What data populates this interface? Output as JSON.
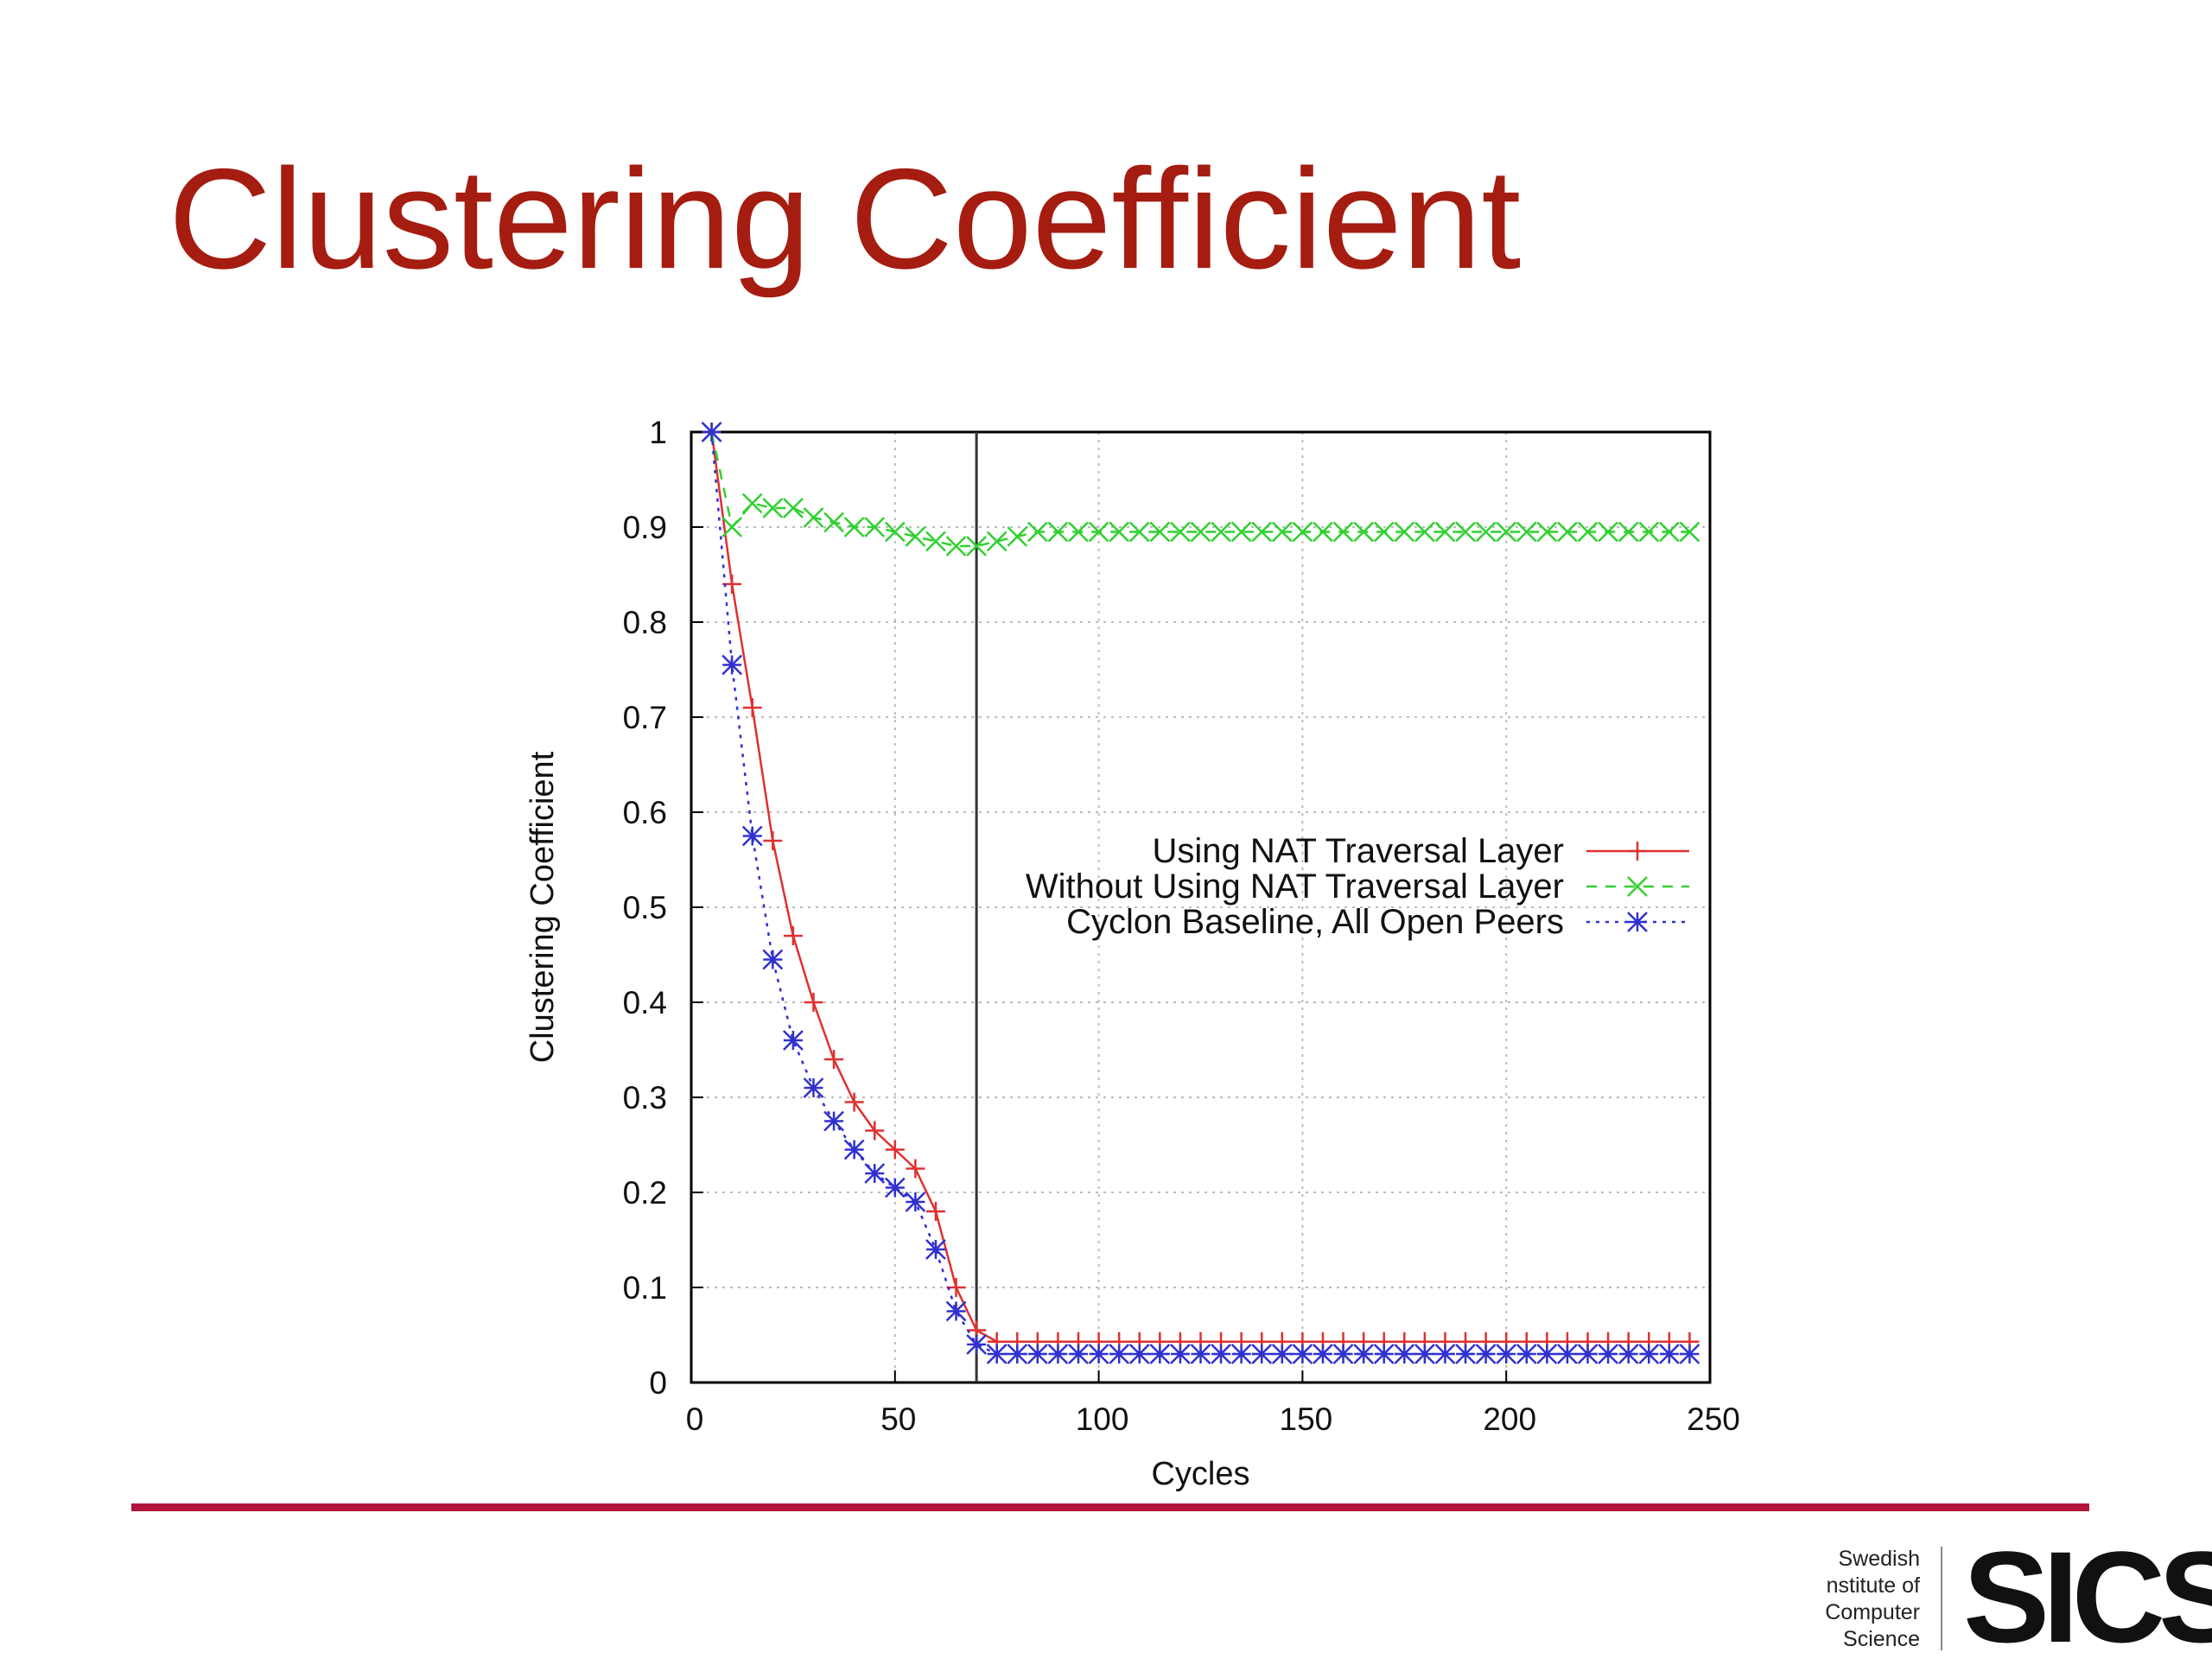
{
  "chart_data": {
    "type": "line",
    "title": "Clustering Coefficient",
    "x_label": "Cycles",
    "y_label": "Clustering Coefficient",
    "x": [
      5,
      10,
      15,
      20,
      25,
      30,
      35,
      40,
      45,
      50,
      55,
      60,
      65,
      70,
      75,
      80,
      85,
      90,
      95,
      100,
      105,
      110,
      115,
      120,
      125,
      130,
      135,
      140,
      145,
      150,
      155,
      160,
      165,
      170,
      175,
      180,
      185,
      190,
      195,
      200,
      205,
      210,
      215,
      220,
      225,
      230,
      235,
      240,
      245
    ],
    "series": [
      {
        "name": "Using NAT Traversal Layer",
        "color": "#e03030",
        "marker": "plus",
        "dash": "solid",
        "values": [
          1.0,
          0.84,
          0.71,
          0.57,
          0.47,
          0.4,
          0.34,
          0.295,
          0.265,
          0.245,
          0.225,
          0.18,
          0.1,
          0.055,
          0.043,
          0.043,
          0.043,
          0.043,
          0.043,
          0.043,
          0.043,
          0.043,
          0.043,
          0.043,
          0.043,
          0.043,
          0.043,
          0.043,
          0.043,
          0.043,
          0.043,
          0.043,
          0.043,
          0.043,
          0.043,
          0.043,
          0.043,
          0.043,
          0.043,
          0.043,
          0.043,
          0.043,
          0.043,
          0.043,
          0.043,
          0.043,
          0.043,
          0.043,
          0.043
        ]
      },
      {
        "name": "Without Using NAT Traversal Layer",
        "color": "#30d030",
        "marker": "cross",
        "dash": "dashed",
        "values": [
          1.0,
          0.9,
          0.925,
          0.92,
          0.92,
          0.91,
          0.905,
          0.9,
          0.9,
          0.895,
          0.89,
          0.885,
          0.88,
          0.88,
          0.885,
          0.89,
          0.895,
          0.895,
          0.895,
          0.895,
          0.895,
          0.895,
          0.895,
          0.895,
          0.895,
          0.895,
          0.895,
          0.895,
          0.895,
          0.895,
          0.895,
          0.895,
          0.895,
          0.895,
          0.895,
          0.895,
          0.895,
          0.895,
          0.895,
          0.895,
          0.895,
          0.895,
          0.895,
          0.895,
          0.895,
          0.895,
          0.895,
          0.895,
          0.895
        ]
      },
      {
        "name": "Cyclon Baseline, All Open Peers",
        "color": "#3030d0",
        "marker": "star",
        "dash": "dotted",
        "values": [
          1.0,
          0.755,
          0.575,
          0.445,
          0.36,
          0.31,
          0.275,
          0.245,
          0.22,
          0.205,
          0.19,
          0.14,
          0.075,
          0.04,
          0.03,
          0.03,
          0.03,
          0.03,
          0.03,
          0.03,
          0.03,
          0.03,
          0.03,
          0.03,
          0.03,
          0.03,
          0.03,
          0.03,
          0.03,
          0.03,
          0.03,
          0.03,
          0.03,
          0.03,
          0.03,
          0.03,
          0.03,
          0.03,
          0.03,
          0.03,
          0.03,
          0.03,
          0.03,
          0.03,
          0.03,
          0.03,
          0.03,
          0.03,
          0.03
        ]
      }
    ],
    "vline": 70,
    "xlim": [
      0,
      250
    ],
    "xticks": [
      0,
      50,
      100,
      150,
      200,
      250
    ],
    "ylim": [
      0,
      1
    ],
    "yticks": [
      0,
      0.1,
      0.2,
      0.3,
      0.4,
      0.5,
      0.6,
      0.7,
      0.8,
      0.9,
      1
    ],
    "grid": true,
    "legend": "right"
  },
  "footer": {
    "org_lines": [
      "Swedish",
      "nstitute of",
      "Computer",
      "Science"
    ],
    "logo": "SICS"
  }
}
